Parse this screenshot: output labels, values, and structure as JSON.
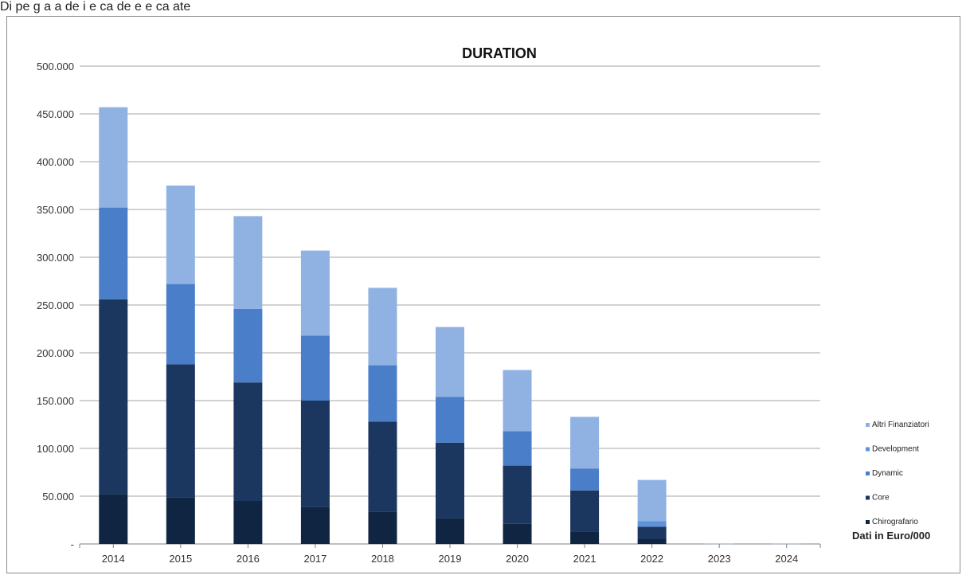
{
  "page": {
    "top_text": "Di pe g a a de i e ca de e e ca ate"
  },
  "chart_data": {
    "type": "bar",
    "stacked": true,
    "title": "DURATION",
    "xlabel": "",
    "ylabel": "",
    "ylim": [
      0,
      500000
    ],
    "yticks": [
      0,
      50000,
      100000,
      150000,
      200000,
      250000,
      300000,
      350000,
      400000,
      450000,
      500000
    ],
    "ytick_labels": [
      "-",
      "50.000",
      "100.000",
      "150.000",
      "200.000",
      "250.000",
      "300.000",
      "350.000",
      "400.000",
      "450.000",
      "500.000"
    ],
    "grid": true,
    "legend_position": "right",
    "note": "Dati in Euro/000",
    "categories": [
      "2014",
      "2015",
      "2016",
      "2017",
      "2018",
      "2019",
      "2020",
      "2021",
      "2022",
      "2023",
      "2024"
    ],
    "series": [
      {
        "name": "Chirografario",
        "color": "#0f2541",
        "values": [
          52000,
          49000,
          45000,
          39000,
          34000,
          27000,
          21000,
          13000,
          5000,
          0,
          0
        ]
      },
      {
        "name": "Core",
        "color": "#1b365f",
        "values": [
          204000,
          139000,
          124000,
          111000,
          94000,
          79000,
          61000,
          43000,
          13000,
          0,
          0
        ]
      },
      {
        "name": "Dynamic",
        "color": "#4a7ec8",
        "values": [
          96000,
          84000,
          77000,
          68000,
          59000,
          48000,
          36000,
          23000,
          0,
          0,
          0
        ]
      },
      {
        "name": "Development",
        "color": "#5f93d8",
        "values": [
          0,
          0,
          0,
          0,
          0,
          0,
          0,
          0,
          6000,
          0,
          0
        ]
      },
      {
        "name": "Altri Finanziatori",
        "color": "#8fb2e3",
        "values": [
          105000,
          103000,
          97000,
          89000,
          81000,
          73000,
          64000,
          54000,
          43000,
          500,
          500
        ]
      }
    ]
  }
}
